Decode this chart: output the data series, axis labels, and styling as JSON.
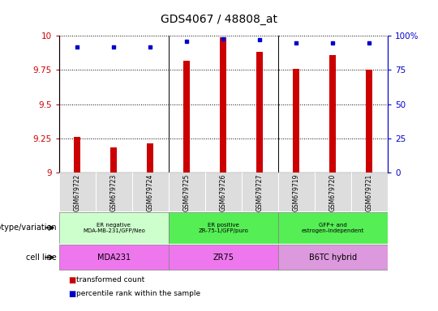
{
  "title": "GDS4067 / 48808_at",
  "samples": [
    "GSM679722",
    "GSM679723",
    "GSM679724",
    "GSM679725",
    "GSM679726",
    "GSM679727",
    "GSM679719",
    "GSM679720",
    "GSM679721"
  ],
  "transformed_count": [
    9.26,
    9.185,
    9.215,
    9.82,
    9.99,
    9.885,
    9.76,
    9.86,
    9.75
  ],
  "percentile_rank": [
    92,
    92,
    92,
    96,
    98,
    97,
    95,
    95,
    95
  ],
  "ylim": [
    9.0,
    10.0
  ],
  "yticks": [
    9.0,
    9.25,
    9.5,
    9.75,
    10.0
  ],
  "ytick_labels": [
    "9",
    "9.25",
    "9.5",
    "9.75",
    "10"
  ],
  "right_yticks": [
    0,
    25,
    50,
    75,
    100
  ],
  "right_ytick_labels": [
    "0",
    "25",
    "50",
    "75",
    "100%"
  ],
  "bar_color": "#cc0000",
  "dot_color": "#0000cc",
  "groups": [
    {
      "label": "ER negative\nMDA-MB-231/GFP/Neo",
      "start": 0,
      "end": 3,
      "color": "#ccffcc"
    },
    {
      "label": "ER positive\nZR-75-1/GFP/puro",
      "start": 3,
      "end": 6,
      "color": "#55ee55"
    },
    {
      "label": "GFP+ and\nestrogen-independent",
      "start": 6,
      "end": 9,
      "color": "#55ee55"
    }
  ],
  "cell_lines": [
    {
      "label": "MDA231",
      "start": 0,
      "end": 3,
      "color": "#ee77ee"
    },
    {
      "label": "ZR75",
      "start": 3,
      "end": 6,
      "color": "#ee77ee"
    },
    {
      "label": "B6TC hybrid",
      "start": 6,
      "end": 9,
      "color": "#dd99dd"
    }
  ],
  "genotype_label": "genotype/variation",
  "cell_line_label": "cell line",
  "legend_bar": "transformed count",
  "legend_dot": "percentile rank within the sample",
  "axis_color_left": "#cc0000",
  "axis_color_right": "#0000cc",
  "sample_bg_color": "#dddddd",
  "n_samples": 9
}
